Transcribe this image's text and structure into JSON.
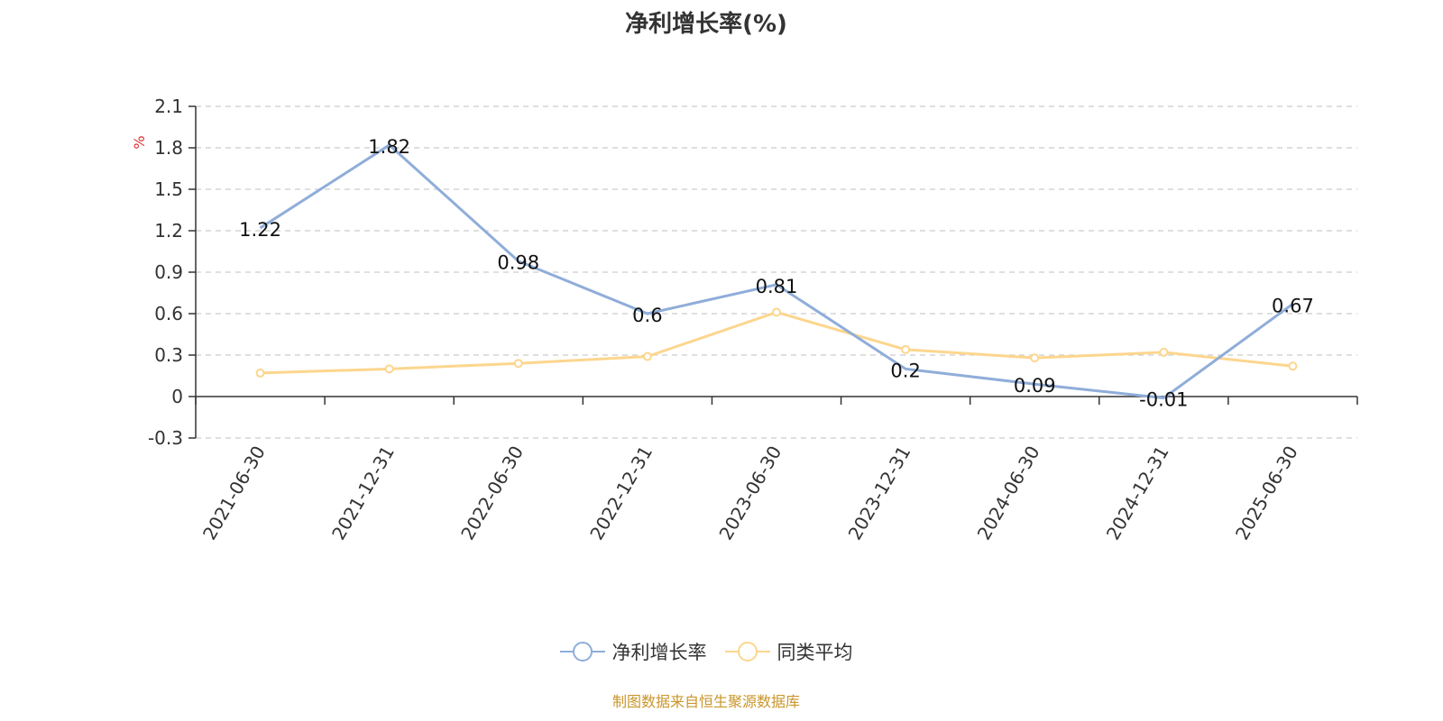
{
  "chart_data": {
    "type": "line",
    "title": "净利增长率(%)",
    "ylabel": "%",
    "ylim": [
      -0.3,
      2.1
    ],
    "ytick_step": 0.3,
    "yticks": [
      "-0.3",
      "0",
      "0.3",
      "0.6",
      "0.9",
      "1.2",
      "1.5",
      "1.8",
      "2.1"
    ],
    "grid": true,
    "legend_position": "bottom",
    "categories": [
      "2021-06-30",
      "2021-12-31",
      "2022-06-30",
      "2022-12-31",
      "2023-06-30",
      "2023-12-31",
      "2024-06-30",
      "2024-12-31",
      "2025-06-30"
    ],
    "series": [
      {
        "name": "净利增长率",
        "color": "#8fadd9",
        "values": [
          1.22,
          1.82,
          0.98,
          0.6,
          0.81,
          0.2,
          0.09,
          -0.01,
          0.67
        ],
        "labels": [
          "1.22",
          "1.82",
          "0.98",
          "0.6",
          "0.81",
          "0.2",
          "0.09",
          "-0.01",
          "0.67"
        ]
      },
      {
        "name": "同类平均",
        "color": "#fcd68e",
        "values": [
          0.17,
          0.2,
          0.24,
          0.29,
          0.61,
          0.34,
          0.28,
          0.32,
          0.22
        ]
      }
    ]
  },
  "footer": "制图数据来自恒生聚源数据库"
}
